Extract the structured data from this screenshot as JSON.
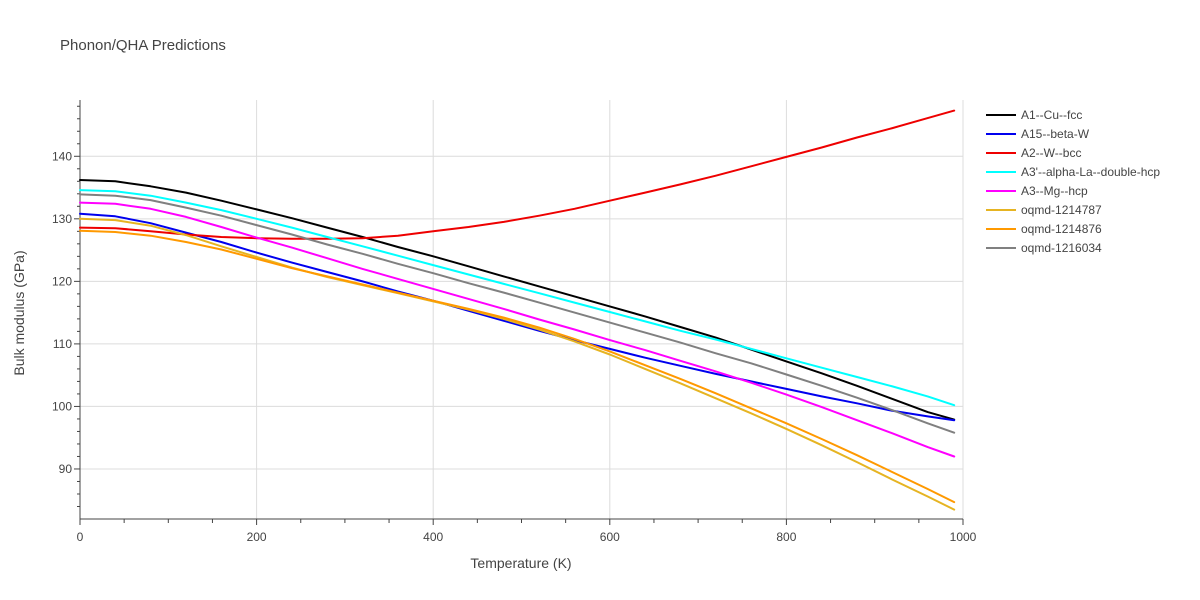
{
  "chart_data": {
    "type": "line",
    "title": "Phonon/QHA Predictions",
    "xlabel": "Temperature (K)",
    "ylabel": "Bulk modulus (GPa)",
    "xlim": [
      0,
      1000
    ],
    "ylim": [
      82,
      149
    ],
    "xticks": [
      0,
      200,
      400,
      600,
      800,
      1000
    ],
    "yticks": [
      90,
      100,
      110,
      120,
      130,
      140
    ],
    "grid": true,
    "legend_position": "top-right",
    "x": [
      0,
      40,
      80,
      120,
      160,
      200,
      240,
      280,
      320,
      360,
      400,
      440,
      480,
      520,
      560,
      600,
      640,
      680,
      720,
      760,
      800,
      840,
      880,
      920,
      960,
      990
    ],
    "series": [
      {
        "name": "A1--Cu--fcc",
        "color": "#000000",
        "values": [
          136.2,
          136.0,
          135.2,
          134.2,
          132.9,
          131.5,
          130.1,
          128.6,
          127.1,
          125.5,
          124.0,
          122.4,
          120.8,
          119.2,
          117.6,
          116.0,
          114.4,
          112.7,
          111.0,
          109.1,
          107.2,
          105.3,
          103.3,
          101.2,
          99.1,
          97.9
        ]
      },
      {
        "name": "A15--beta-W",
        "color": "#0000ee",
        "values": [
          130.8,
          130.4,
          129.3,
          127.8,
          126.3,
          124.6,
          123.0,
          121.5,
          120.0,
          118.4,
          116.9,
          115.3,
          113.7,
          112.1,
          110.6,
          109.2,
          107.8,
          106.5,
          105.2,
          104.0,
          102.8,
          101.6,
          100.5,
          99.3,
          98.4,
          97.8
        ]
      },
      {
        "name": "A2--W--bcc",
        "color": "#ee0000",
        "values": [
          128.6,
          128.5,
          128.0,
          127.5,
          127.1,
          126.9,
          126.8,
          126.8,
          126.9,
          127.3,
          128.0,
          128.7,
          129.5,
          130.5,
          131.6,
          132.9,
          134.2,
          135.5,
          136.9,
          138.4,
          139.9,
          141.4,
          143.0,
          144.5,
          146.1,
          147.3
        ]
      },
      {
        "name": "A3'--alpha-La--double-hcp",
        "color": "#00ffff",
        "values": [
          134.6,
          134.4,
          133.7,
          132.6,
          131.4,
          130.0,
          128.6,
          127.1,
          125.6,
          124.1,
          122.6,
          121.1,
          119.6,
          118.1,
          116.6,
          115.1,
          113.6,
          112.1,
          110.7,
          109.2,
          107.7,
          106.2,
          104.7,
          103.2,
          101.6,
          100.2
        ]
      },
      {
        "name": "A3--Mg--hcp",
        "color": "#ff00ff",
        "values": [
          132.6,
          132.4,
          131.6,
          130.3,
          128.7,
          127.0,
          125.4,
          123.7,
          122.0,
          120.4,
          118.8,
          117.2,
          115.6,
          113.9,
          112.3,
          110.6,
          109.0,
          107.3,
          105.6,
          103.8,
          101.9,
          99.9,
          97.8,
          95.7,
          93.5,
          92.0
        ]
      },
      {
        "name": "oqmd-1214787",
        "color": "#e6b422",
        "values": [
          130.0,
          129.8,
          128.9,
          127.4,
          125.6,
          123.9,
          122.2,
          120.7,
          119.4,
          118.1,
          116.8,
          115.5,
          114.0,
          112.3,
          110.4,
          108.3,
          106.0,
          103.7,
          101.3,
          98.9,
          96.4,
          93.8,
          91.1,
          88.3,
          85.6,
          83.5
        ]
      },
      {
        "name": "oqmd-1214876",
        "color": "#ff9900",
        "values": [
          128.1,
          127.9,
          127.3,
          126.3,
          125.1,
          123.6,
          122.1,
          120.8,
          119.5,
          118.2,
          116.9,
          115.6,
          114.2,
          112.6,
          110.8,
          108.8,
          106.6,
          104.4,
          102.1,
          99.7,
          97.3,
          94.8,
          92.2,
          89.5,
          86.8,
          84.7
        ]
      },
      {
        "name": "oqmd-1216034",
        "color": "#808080",
        "values": [
          133.9,
          133.7,
          133.0,
          131.8,
          130.5,
          129.0,
          127.5,
          125.9,
          124.4,
          122.8,
          121.3,
          119.7,
          118.2,
          116.6,
          115.0,
          113.4,
          111.8,
          110.2,
          108.5,
          106.9,
          105.1,
          103.3,
          101.4,
          99.4,
          97.3,
          95.8
        ]
      }
    ]
  }
}
